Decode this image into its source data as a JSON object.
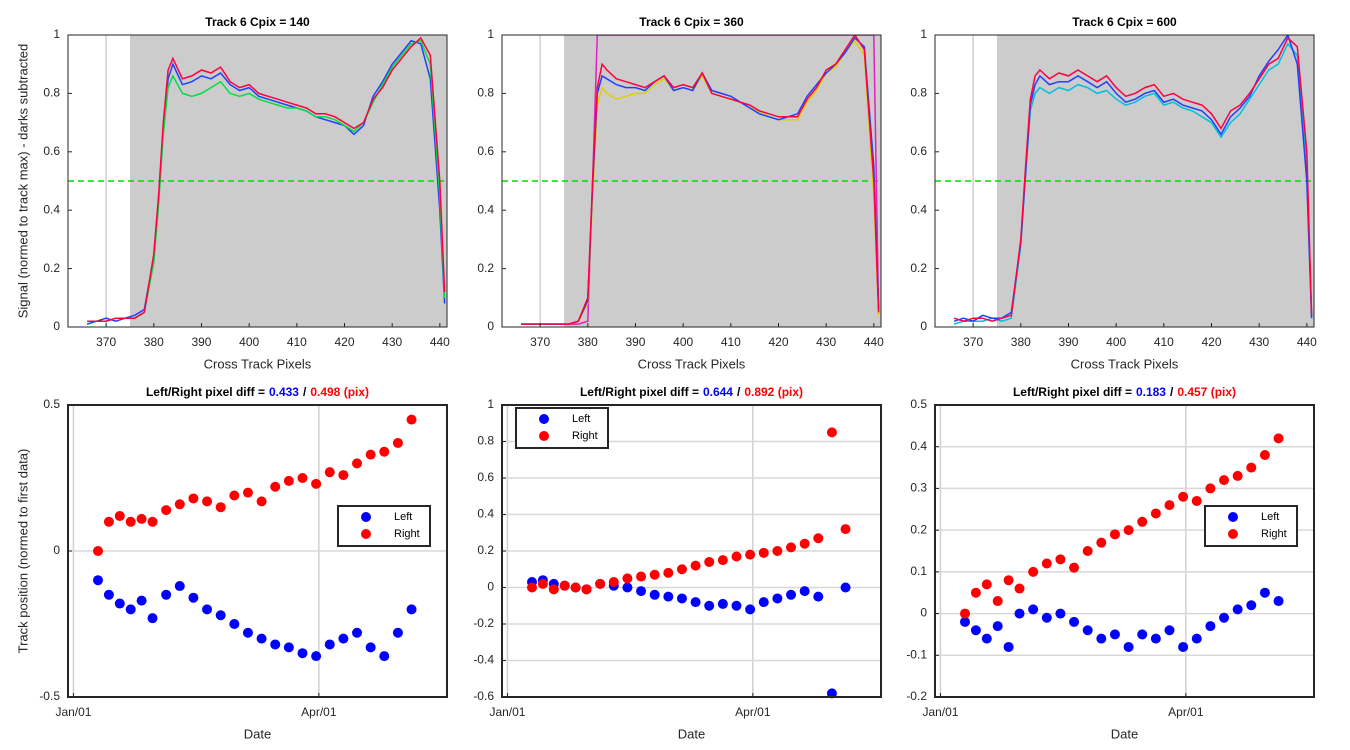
{
  "chart_data": [
    {
      "type": "line",
      "title": "Track 6 Cpix = 140",
      "xlabel": "Cross Track Pixels",
      "ylabel": "Signal (normed to track max) - darks subtracted",
      "xlim": [
        362,
        441.5
      ],
      "xticks": [
        370,
        380,
        390,
        400,
        410,
        420,
        430,
        440
      ],
      "ylim": [
        0,
        1
      ],
      "yticks": [
        0,
        0.2,
        0.4,
        0.6,
        0.8,
        1
      ],
      "shade_from": 375,
      "threshold": {
        "value": 0.5,
        "color": "#00dd00"
      },
      "xgrid": true,
      "x": [
        366,
        368,
        370,
        372,
        374,
        376,
        378,
        380,
        381,
        382,
        383,
        384,
        386,
        388,
        390,
        392,
        394,
        396,
        398,
        400,
        402,
        404,
        406,
        408,
        410,
        412,
        414,
        416,
        418,
        420,
        422,
        424,
        426,
        428,
        430,
        432,
        434,
        436,
        438,
        440,
        441
      ],
      "series": [
        {
          "color": "#2040ff",
          "values": [
            0.01,
            0.02,
            0.03,
            0.02,
            0.03,
            0.04,
            0.06,
            0.24,
            0.44,
            0.68,
            0.85,
            0.9,
            0.83,
            0.84,
            0.86,
            0.85,
            0.87,
            0.83,
            0.81,
            0.82,
            0.79,
            0.78,
            0.77,
            0.76,
            0.75,
            0.74,
            0.72,
            0.71,
            0.7,
            0.69,
            0.66,
            0.69,
            0.79,
            0.84,
            0.9,
            0.94,
            0.98,
            0.97,
            0.85,
            0.4,
            0.08
          ]
        },
        {
          "color": "#00e040",
          "values": [
            0.02,
            0.02,
            0.02,
            0.03,
            0.03,
            0.03,
            0.05,
            0.22,
            0.42,
            0.66,
            0.82,
            0.86,
            0.8,
            0.79,
            0.8,
            0.82,
            0.84,
            0.8,
            0.79,
            0.8,
            0.78,
            0.77,
            0.76,
            0.75,
            0.75,
            0.74,
            0.72,
            0.72,
            0.71,
            0.69,
            0.67,
            0.7,
            0.77,
            0.83,
            0.89,
            0.93,
            0.97,
            0.98,
            0.9,
            0.45,
            0.1
          ]
        },
        {
          "color": "#ff0040",
          "values": [
            0.02,
            0.02,
            0.02,
            0.03,
            0.03,
            0.03,
            0.05,
            0.25,
            0.45,
            0.7,
            0.88,
            0.92,
            0.85,
            0.86,
            0.88,
            0.87,
            0.89,
            0.84,
            0.82,
            0.83,
            0.8,
            0.79,
            0.78,
            0.77,
            0.76,
            0.75,
            0.73,
            0.73,
            0.72,
            0.7,
            0.68,
            0.7,
            0.78,
            0.82,
            0.88,
            0.92,
            0.96,
            0.99,
            0.93,
            0.5,
            0.12
          ]
        }
      ]
    },
    {
      "type": "line",
      "title": "Track 6 Cpix = 360",
      "xlabel": "Cross Track Pixels",
      "xlim": [
        362,
        441.5
      ],
      "xticks": [
        370,
        380,
        390,
        400,
        410,
        420,
        430,
        440
      ],
      "ylim": [
        0,
        1
      ],
      "yticks": [
        0,
        0.2,
        0.4,
        0.6,
        0.8,
        1
      ],
      "shade_from": 375,
      "threshold": {
        "value": 0.5,
        "color": "#00dd00"
      },
      "xgrid": true,
      "x": [
        366,
        368,
        370,
        372,
        374,
        376,
        378,
        380,
        381,
        382,
        383,
        384,
        386,
        388,
        390,
        392,
        394,
        396,
        398,
        400,
        402,
        404,
        406,
        408,
        410,
        412,
        414,
        416,
        418,
        420,
        422,
        424,
        426,
        428,
        430,
        432,
        434,
        436,
        438,
        440,
        441
      ],
      "series": [
        {
          "color": "#e020c0",
          "values": [
            0.01,
            0.01,
            0.01,
            0.01,
            0.01,
            0.01,
            0.01,
            0.02,
            0.5,
            1,
            1,
            1,
            1,
            1,
            1,
            1,
            1,
            1,
            1,
            1,
            1,
            1,
            1,
            1,
            1,
            1,
            1,
            1,
            1,
            1,
            1,
            1,
            1,
            1,
            1,
            1,
            1,
            1,
            1,
            1,
            0.05
          ]
        },
        {
          "color": "#e0d000",
          "values": [
            0.01,
            0.01,
            0.01,
            0.01,
            0.01,
            0.01,
            0.02,
            0.08,
            0.45,
            0.76,
            0.82,
            0.8,
            0.78,
            0.79,
            0.8,
            0.8,
            0.83,
            0.85,
            0.81,
            0.82,
            0.81,
            0.86,
            0.8,
            0.79,
            0.78,
            0.77,
            0.75,
            0.74,
            0.72,
            0.71,
            0.71,
            0.71,
            0.77,
            0.81,
            0.87,
            0.89,
            0.94,
            0.98,
            0.93,
            0.45,
            0.04
          ]
        },
        {
          "color": "#2040ff",
          "values": [
            0.01,
            0.01,
            0.01,
            0.01,
            0.01,
            0.01,
            0.02,
            0.09,
            0.48,
            0.8,
            0.86,
            0.85,
            0.83,
            0.82,
            0.82,
            0.81,
            0.84,
            0.86,
            0.81,
            0.82,
            0.81,
            0.87,
            0.81,
            0.8,
            0.79,
            0.77,
            0.75,
            0.73,
            0.72,
            0.71,
            0.72,
            0.73,
            0.79,
            0.83,
            0.87,
            0.9,
            0.94,
            0.99,
            0.96,
            0.55,
            0.06
          ]
        },
        {
          "color": "#ff0040",
          "values": [
            0.01,
            0.01,
            0.01,
            0.01,
            0.01,
            0.01,
            0.02,
            0.1,
            0.5,
            0.82,
            0.9,
            0.88,
            0.85,
            0.84,
            0.83,
            0.82,
            0.84,
            0.86,
            0.82,
            0.83,
            0.82,
            0.87,
            0.8,
            0.79,
            0.78,
            0.77,
            0.76,
            0.74,
            0.73,
            0.72,
            0.72,
            0.72,
            0.78,
            0.82,
            0.88,
            0.9,
            0.95,
            1,
            0.95,
            0.5,
            0.05
          ]
        }
      ]
    },
    {
      "type": "line",
      "title": "Track 6 Cpix = 600",
      "xlabel": "Cross Track Pixels",
      "xlim": [
        362,
        441.5
      ],
      "xticks": [
        370,
        380,
        390,
        400,
        410,
        420,
        430,
        440
      ],
      "ylim": [
        0,
        1
      ],
      "yticks": [
        0,
        0.2,
        0.4,
        0.6,
        0.8,
        1
      ],
      "shade_from": 375,
      "threshold": {
        "value": 0.5,
        "color": "#00dd00"
      },
      "xgrid": true,
      "x": [
        366,
        368,
        370,
        372,
        374,
        376,
        378,
        380,
        381,
        382,
        383,
        384,
        386,
        388,
        390,
        392,
        394,
        396,
        398,
        400,
        402,
        404,
        406,
        408,
        410,
        412,
        414,
        416,
        418,
        420,
        422,
        424,
        426,
        428,
        430,
        432,
        434,
        436,
        438,
        440,
        441
      ],
      "series": [
        {
          "color": "#00c0e0",
          "values": [
            0.01,
            0.02,
            0.02,
            0.02,
            0.03,
            0.02,
            0.03,
            0.28,
            0.52,
            0.74,
            0.8,
            0.82,
            0.8,
            0.82,
            0.81,
            0.83,
            0.82,
            0.8,
            0.81,
            0.78,
            0.76,
            0.77,
            0.79,
            0.8,
            0.76,
            0.77,
            0.75,
            0.74,
            0.72,
            0.7,
            0.65,
            0.7,
            0.73,
            0.78,
            0.83,
            0.88,
            0.9,
            0.97,
            0.93,
            0.55,
            0.03
          ]
        },
        {
          "color": "#2040ff",
          "values": [
            0.02,
            0.03,
            0.02,
            0.04,
            0.03,
            0.03,
            0.05,
            0.29,
            0.53,
            0.76,
            0.83,
            0.86,
            0.83,
            0.84,
            0.84,
            0.86,
            0.84,
            0.82,
            0.84,
            0.8,
            0.77,
            0.78,
            0.8,
            0.81,
            0.77,
            0.78,
            0.76,
            0.75,
            0.74,
            0.71,
            0.66,
            0.72,
            0.75,
            0.79,
            0.86,
            0.91,
            0.95,
            1,
            0.9,
            0.5,
            0.03
          ]
        },
        {
          "color": "#ff0040",
          "values": [
            0.03,
            0.02,
            0.03,
            0.03,
            0.02,
            0.03,
            0.04,
            0.3,
            0.55,
            0.78,
            0.86,
            0.88,
            0.85,
            0.87,
            0.86,
            0.88,
            0.86,
            0.84,
            0.86,
            0.82,
            0.79,
            0.8,
            0.82,
            0.83,
            0.79,
            0.8,
            0.78,
            0.77,
            0.76,
            0.73,
            0.68,
            0.74,
            0.76,
            0.8,
            0.85,
            0.9,
            0.92,
            0.99,
            0.96,
            0.6,
            0.04
          ]
        }
      ]
    },
    {
      "type": "scatter",
      "title": "Left/Right pixel diff =",
      "left_label": "0.433",
      "separator": "/",
      "right_label": "0.498 (pix)",
      "xlabel": "Date",
      "ylabel": "Track position (normed to first data)",
      "xlim": [
        -1,
        138
      ],
      "xticks": [
        {
          "value": 1,
          "label": "Jan/01"
        },
        {
          "value": 91,
          "label": "Apr/01"
        }
      ],
      "ylim": [
        -0.5,
        0.5
      ],
      "yticks": [
        -0.5,
        0,
        0.5
      ],
      "grid": true,
      "legend": "east",
      "x": [
        10,
        14,
        18,
        22,
        26,
        30,
        35,
        40,
        45,
        50,
        55,
        60,
        65,
        70,
        75,
        80,
        85,
        90,
        95,
        100,
        105,
        110,
        115,
        120,
        125
      ],
      "series": [
        {
          "name": "Left",
          "color": "#0000ff",
          "values": [
            -0.1,
            -0.15,
            -0.18,
            -0.2,
            -0.17,
            -0.23,
            -0.15,
            -0.12,
            -0.16,
            -0.2,
            -0.22,
            -0.25,
            -0.28,
            -0.3,
            -0.32,
            -0.33,
            -0.35,
            -0.36,
            -0.32,
            -0.3,
            -0.28,
            -0.33,
            -0.36,
            -0.28,
            -0.2
          ]
        },
        {
          "name": "Right",
          "color": "#ff0000",
          "values": [
            0,
            0.1,
            0.12,
            0.1,
            0.11,
            0.1,
            0.14,
            0.16,
            0.18,
            0.17,
            0.15,
            0.19,
            0.2,
            0.17,
            0.22,
            0.24,
            0.25,
            0.23,
            0.27,
            0.26,
            0.3,
            0.33,
            0.34,
            0.37,
            0.45
          ]
        }
      ]
    },
    {
      "type": "scatter",
      "title": "Left/Right pixel diff =",
      "left_label": "0.644",
      "separator": "/",
      "right_label": "0.892 (pix)",
      "xlabel": "Date",
      "xlim": [
        -1,
        138
      ],
      "xticks": [
        {
          "value": 1,
          "label": "Jan/01"
        },
        {
          "value": 91,
          "label": "Apr/01"
        }
      ],
      "ylim": [
        -0.6,
        1
      ],
      "yticks": [
        -0.6,
        -0.4,
        -0.2,
        0,
        0.2,
        0.4,
        0.6,
        0.8,
        1
      ],
      "grid": true,
      "legend": "northwest",
      "x": [
        10,
        14,
        18,
        22,
        26,
        30,
        35,
        40,
        45,
        50,
        55,
        60,
        65,
        70,
        75,
        80,
        85,
        90,
        95,
        100,
        105,
        110,
        115,
        120,
        125
      ],
      "series": [
        {
          "name": "Left",
          "color": "#0000ff",
          "values": [
            0.03,
            0.04,
            0.02,
            0.01,
            0,
            -0.01,
            0.02,
            0.01,
            0,
            -0.02,
            -0.04,
            -0.05,
            -0.06,
            -0.08,
            -0.1,
            -0.09,
            -0.1,
            -0.12,
            -0.08,
            -0.06,
            -0.04,
            -0.02,
            -0.05,
            -0.58,
            0
          ]
        },
        {
          "name": "Right",
          "color": "#ff0000",
          "values": [
            0,
            0.02,
            -0.01,
            0.01,
            0,
            -0.01,
            0.02,
            0.03,
            0.05,
            0.06,
            0.07,
            0.08,
            0.1,
            0.12,
            0.14,
            0.15,
            0.17,
            0.18,
            0.19,
            0.2,
            0.22,
            0.24,
            0.27,
            0.85,
            0.32
          ]
        }
      ]
    },
    {
      "type": "scatter",
      "title": "Left/Right pixel diff =",
      "left_label": "0.183",
      "separator": "/",
      "right_label": "0.457 (pix)",
      "xlabel": "Date",
      "xlim": [
        -1,
        138
      ],
      "xticks": [
        {
          "value": 1,
          "label": "Jan/01"
        },
        {
          "value": 91,
          "label": "Apr/01"
        }
      ],
      "ylim": [
        -0.2,
        0.5
      ],
      "yticks": [
        -0.2,
        -0.1,
        0,
        0.1,
        0.2,
        0.3,
        0.4,
        0.5
      ],
      "grid": true,
      "legend": "east",
      "x": [
        10,
        14,
        18,
        22,
        26,
        30,
        35,
        40,
        45,
        50,
        55,
        60,
        65,
        70,
        75,
        80,
        85,
        90,
        95,
        100,
        105,
        110,
        115,
        120,
        125
      ],
      "series": [
        {
          "name": "Left",
          "color": "#0000ff",
          "values": [
            -0.02,
            -0.04,
            -0.06,
            -0.03,
            -0.08,
            0,
            0.01,
            -0.01,
            0,
            -0.02,
            -0.04,
            -0.06,
            -0.05,
            -0.08,
            -0.05,
            -0.06,
            -0.04,
            -0.08,
            -0.06,
            -0.03,
            -0.01,
            0.01,
            0.02,
            0.05,
            0.03
          ]
        },
        {
          "name": "Right",
          "color": "#ff0000",
          "values": [
            0,
            0.05,
            0.07,
            0.03,
            0.08,
            0.06,
            0.1,
            0.12,
            0.13,
            0.11,
            0.15,
            0.17,
            0.19,
            0.2,
            0.22,
            0.24,
            0.26,
            0.28,
            0.27,
            0.3,
            0.32,
            0.33,
            0.35,
            0.38,
            0.42
          ]
        }
      ]
    }
  ]
}
